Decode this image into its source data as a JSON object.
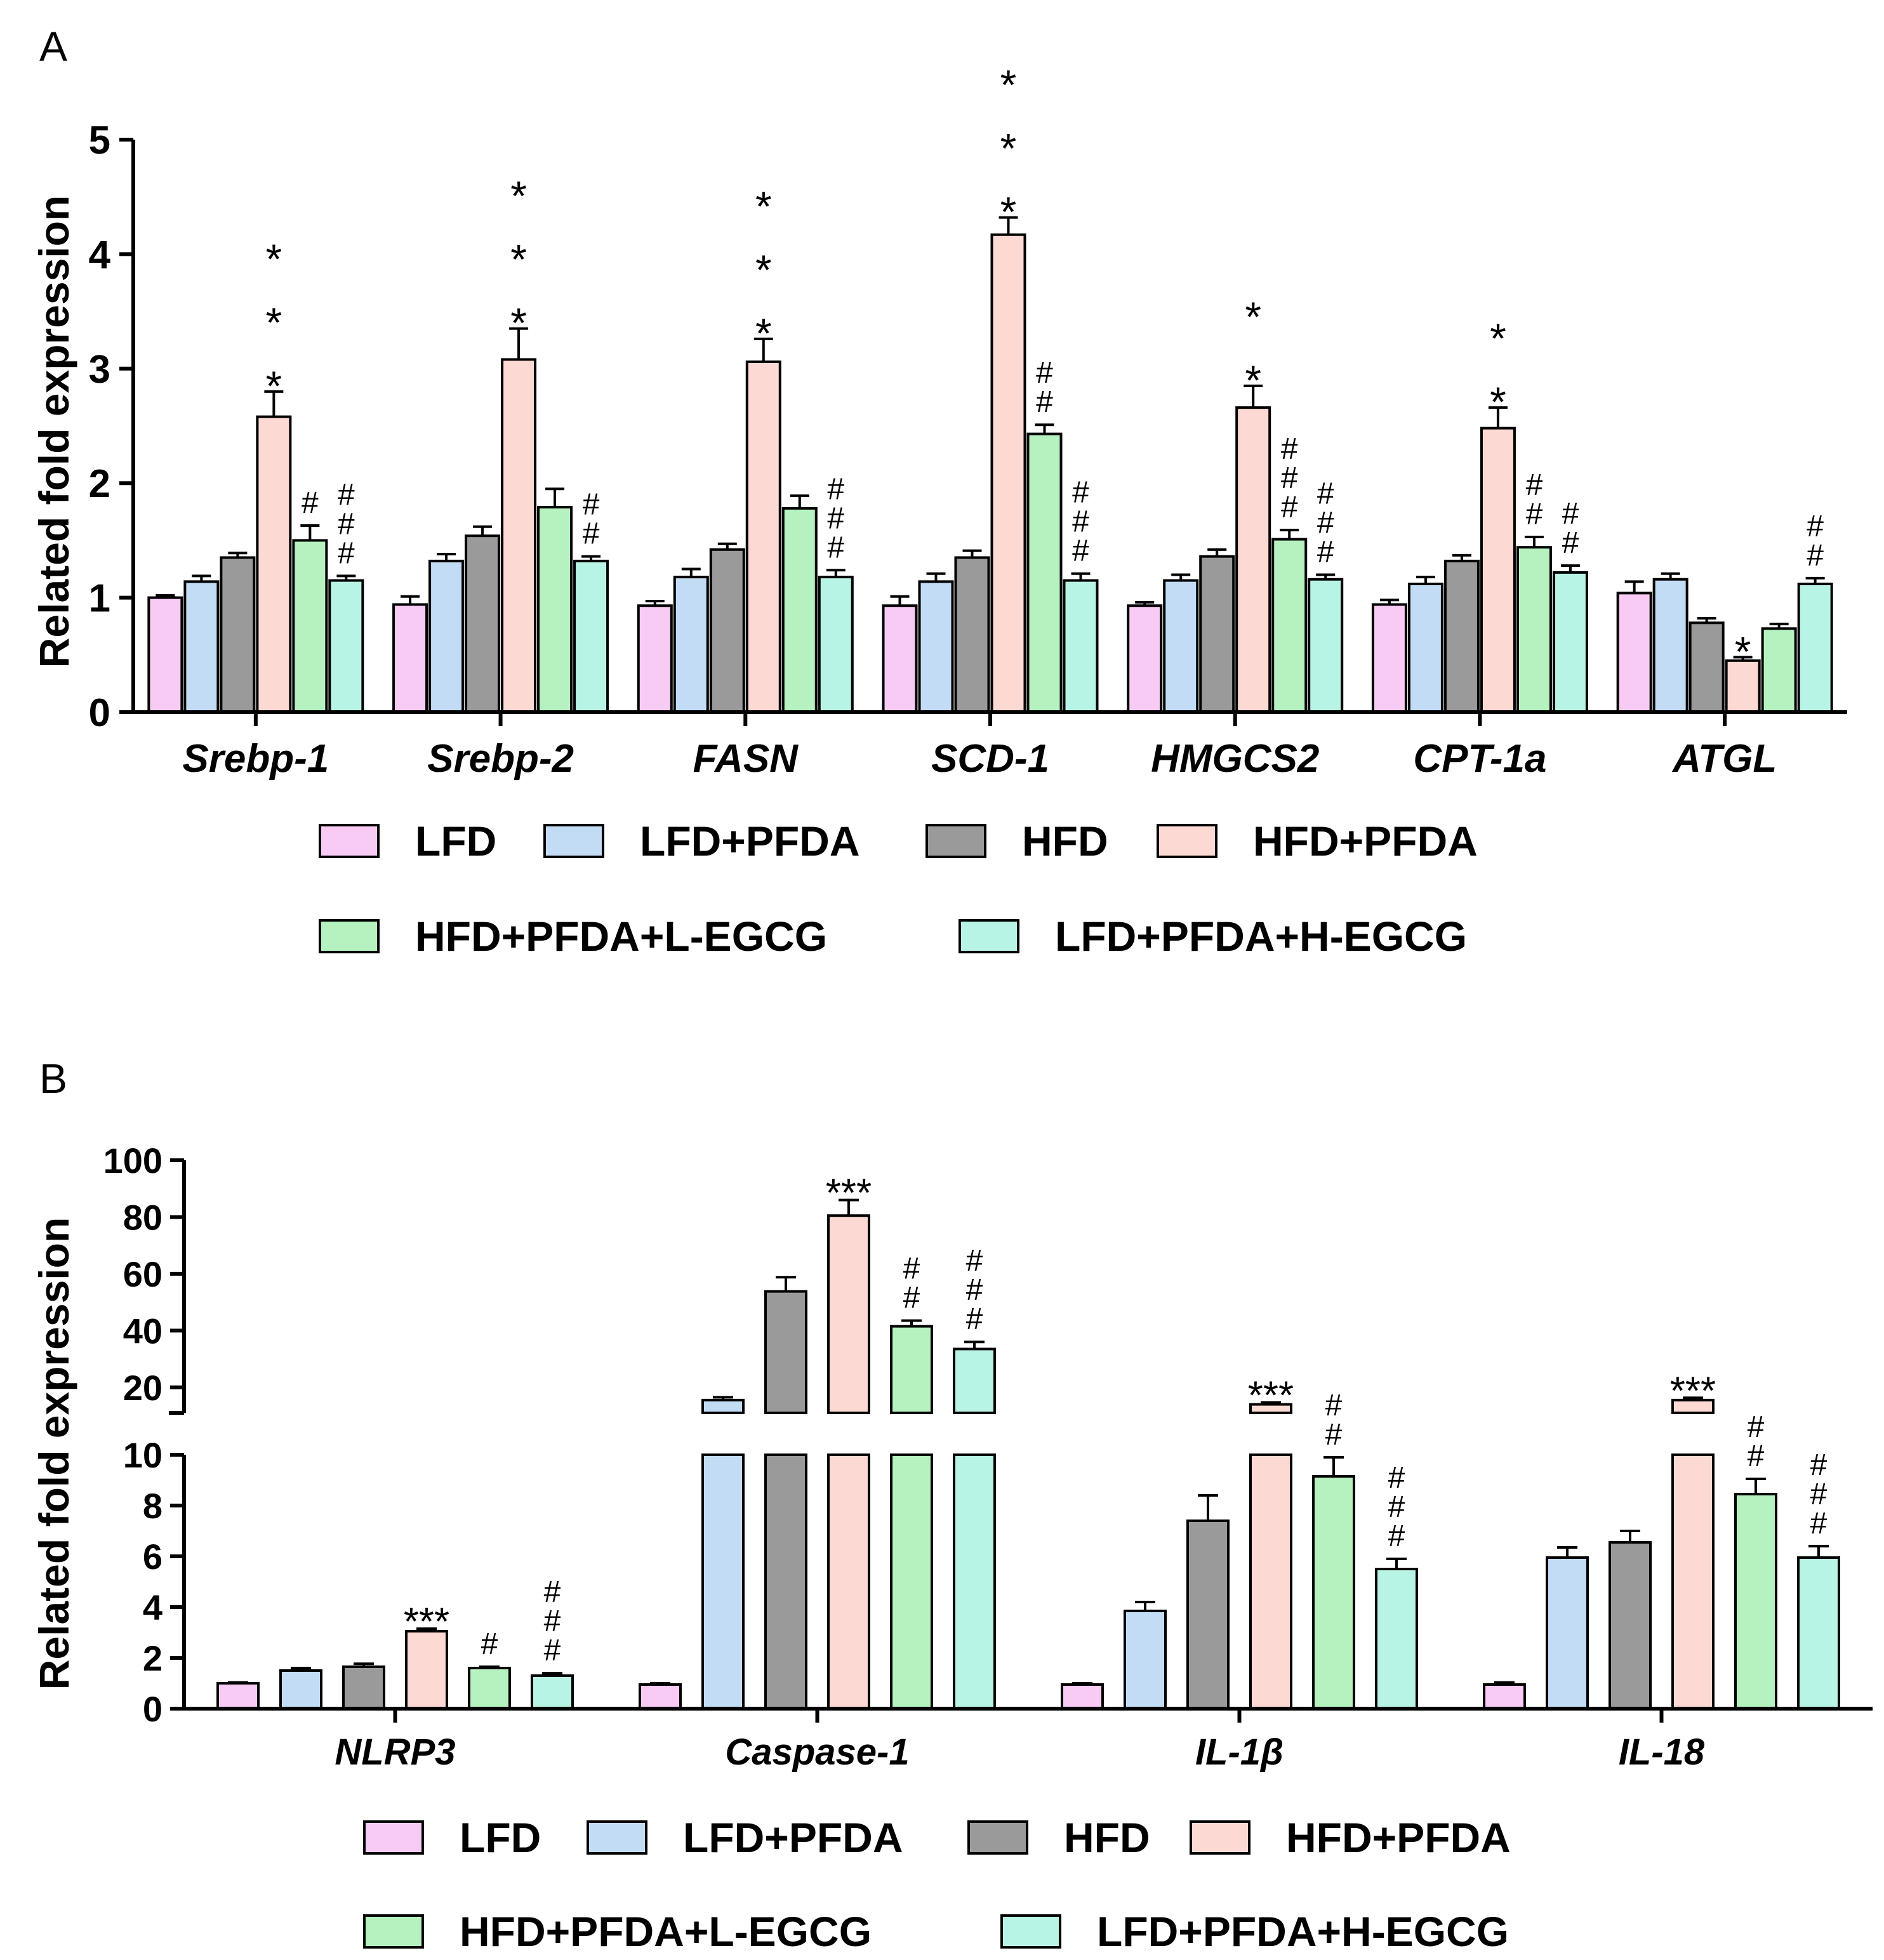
{
  "colors": {
    "LFD": "#f7cbf3",
    "LFD+PFDA": "#c3dcf5",
    "HFD": "#9a9a9a",
    "HFD+PFDA": "#fcd9d3",
    "HFD+PFDA+L-EGCG": "#b5f2c0",
    "LFD+PFDA+H-EGCG": "#b8f4e6",
    "axis": "#000000"
  },
  "chart_data": [
    {
      "panel": "A",
      "type": "bar",
      "ylabel": "Related fold expression",
      "ylim": [
        0,
        5
      ],
      "yticks": [
        0,
        1,
        2,
        3,
        4,
        5
      ],
      "categories": [
        "Srebp-1",
        "Srebp-2",
        "FASN",
        "SCD-1",
        "HMGCS2",
        "CPT-1a",
        "ATGL"
      ],
      "legend": {
        "row1": [
          "LFD",
          "LFD+PFDA",
          "HFD",
          "HFD+PFDA"
        ],
        "row2": [
          "HFD+PFDA+L-EGCG",
          "LFD+PFDA+H-EGCG"
        ]
      },
      "series": [
        {
          "name": "LFD",
          "values": [
            1.0,
            0.94,
            0.93,
            0.93,
            0.93,
            0.94,
            1.04
          ],
          "errors": [
            0.02,
            0.07,
            0.04,
            0.08,
            0.03,
            0.04,
            0.1
          ]
        },
        {
          "name": "LFD+PFDA",
          "values": [
            1.14,
            1.32,
            1.18,
            1.14,
            1.15,
            1.12,
            1.16
          ],
          "errors": [
            0.05,
            0.06,
            0.07,
            0.07,
            0.05,
            0.06,
            0.05
          ]
        },
        {
          "name": "HFD",
          "values": [
            1.35,
            1.54,
            1.42,
            1.35,
            1.36,
            1.32,
            0.78
          ],
          "errors": [
            0.04,
            0.08,
            0.05,
            0.06,
            0.06,
            0.05,
            0.04
          ]
        },
        {
          "name": "HFD+PFDA",
          "values": [
            2.58,
            3.08,
            3.06,
            4.17,
            2.66,
            2.48,
            0.45
          ],
          "errors": [
            0.22,
            0.27,
            0.2,
            0.15,
            0.19,
            0.18,
            0.03
          ]
        },
        {
          "name": "HFD+PFDA+L-EGCG",
          "values": [
            1.5,
            1.79,
            1.78,
            2.43,
            1.51,
            1.44,
            0.73
          ],
          "errors": [
            0.13,
            0.16,
            0.11,
            0.08,
            0.08,
            0.09,
            0.04
          ]
        },
        {
          "name": "LFD+PFDA+H-EGCG",
          "values": [
            1.15,
            1.32,
            1.18,
            1.15,
            1.16,
            1.22,
            1.12
          ],
          "errors": [
            0.04,
            0.04,
            0.06,
            0.06,
            0.04,
            0.06,
            0.05
          ]
        }
      ],
      "annotations": [
        {
          "category": "Srebp-1",
          "series": "HFD+PFDA",
          "marks": [
            "*",
            "*",
            "*"
          ]
        },
        {
          "category": "Srebp-1",
          "series": "HFD+PFDA+L-EGCG",
          "marks": [
            "#"
          ]
        },
        {
          "category": "Srebp-1",
          "series": "LFD+PFDA+H-EGCG",
          "marks": [
            "#",
            "#",
            "#"
          ]
        },
        {
          "category": "Srebp-2",
          "series": "HFD+PFDA",
          "marks": [
            "*",
            "*",
            "*"
          ]
        },
        {
          "category": "Srebp-2",
          "series": "LFD+PFDA+H-EGCG",
          "marks": [
            "#",
            "#"
          ]
        },
        {
          "category": "FASN",
          "series": "HFD+PFDA",
          "marks": [
            "*",
            "*",
            "*"
          ]
        },
        {
          "category": "FASN",
          "series": "LFD+PFDA+H-EGCG",
          "marks": [
            "#",
            "#",
            "#"
          ]
        },
        {
          "category": "SCD-1",
          "series": "HFD+PFDA",
          "marks": [
            "*",
            "*",
            "*"
          ]
        },
        {
          "category": "SCD-1",
          "series": "HFD+PFDA+L-EGCG",
          "marks": [
            "#",
            "#"
          ]
        },
        {
          "category": "SCD-1",
          "series": "LFD+PFDA+H-EGCG",
          "marks": [
            "#",
            "#",
            "#"
          ]
        },
        {
          "category": "HMGCS2",
          "series": "HFD+PFDA",
          "marks": [
            "*",
            "*"
          ]
        },
        {
          "category": "HMGCS2",
          "series": "HFD+PFDA+L-EGCG",
          "marks": [
            "#",
            "#",
            "#"
          ]
        },
        {
          "category": "HMGCS2",
          "series": "LFD+PFDA+H-EGCG",
          "marks": [
            "#",
            "#",
            "#"
          ]
        },
        {
          "category": "CPT-1a",
          "series": "HFD+PFDA",
          "marks": [
            "*",
            "*"
          ]
        },
        {
          "category": "CPT-1a",
          "series": "HFD+PFDA+L-EGCG",
          "marks": [
            "#",
            "#"
          ]
        },
        {
          "category": "CPT-1a",
          "series": "LFD+PFDA+H-EGCG",
          "marks": [
            "#",
            "#"
          ]
        },
        {
          "category": "ATGL",
          "series": "HFD+PFDA",
          "marks": [
            "*"
          ]
        },
        {
          "category": "ATGL",
          "series": "LFD+PFDA+H-EGCG",
          "marks": [
            "#",
            "#"
          ]
        }
      ]
    },
    {
      "panel": "B",
      "type": "bar",
      "ylabel": "Related fold expression",
      "ylim_lower": [
        0,
        10
      ],
      "yticks_lower": [
        0,
        2,
        4,
        6,
        8,
        10
      ],
      "ylim_upper": [
        11,
        100
      ],
      "yticks_upper": [
        20,
        40,
        60,
        80,
        100
      ],
      "categories": [
        "NLRP3",
        "Caspase-1",
        "IL-1β",
        "IL-18"
      ],
      "legend": {
        "row1": [
          "LFD",
          "LFD+PFDA",
          "HFD",
          "HFD+PFDA"
        ],
        "row2": [
          "HFD+PFDA+L-EGCG",
          "LFD+PFDA+H-EGCG"
        ]
      },
      "series": [
        {
          "name": "LFD",
          "values": [
            1.0,
            0.95,
            0.95,
            0.95
          ],
          "errors": [
            0.03,
            0.05,
            0.05,
            0.08
          ]
        },
        {
          "name": "LFD+PFDA",
          "values": [
            1.5,
            15.5,
            3.85,
            5.95
          ],
          "errors": [
            0.1,
            1.0,
            0.35,
            0.4
          ]
        },
        {
          "name": "HFD",
          "values": [
            1.65,
            53.8,
            7.4,
            6.55
          ],
          "errors": [
            0.12,
            5.0,
            1.0,
            0.45
          ]
        },
        {
          "name": "HFD+PFDA",
          "values": [
            3.05,
            80.5,
            14.0,
            15.5
          ],
          "errors": [
            0.1,
            5.5,
            0.7,
            0.8
          ]
        },
        {
          "name": "HFD+PFDA+L-EGCG",
          "values": [
            1.6,
            41.5,
            9.15,
            8.45
          ],
          "errors": [
            0.05,
            2.0,
            0.75,
            0.6
          ]
        },
        {
          "name": "LFD+PFDA+H-EGCG",
          "values": [
            1.3,
            33.5,
            5.5,
            5.95
          ],
          "errors": [
            0.1,
            2.5,
            0.4,
            0.45
          ]
        }
      ],
      "annotations": [
        {
          "category": "NLRP3",
          "series": "HFD+PFDA",
          "marks": [
            "***"
          ]
        },
        {
          "category": "NLRP3",
          "series": "HFD+PFDA+L-EGCG",
          "marks": [
            "#"
          ]
        },
        {
          "category": "NLRP3",
          "series": "LFD+PFDA+H-EGCG",
          "marks": [
            "#",
            "#",
            "#"
          ]
        },
        {
          "category": "Caspase-1",
          "series": "HFD+PFDA",
          "marks": [
            "***"
          ]
        },
        {
          "category": "Caspase-1",
          "series": "HFD+PFDA+L-EGCG",
          "marks": [
            "#",
            "#"
          ]
        },
        {
          "category": "Caspase-1",
          "series": "LFD+PFDA+H-EGCG",
          "marks": [
            "#",
            "#",
            "#"
          ]
        },
        {
          "category": "IL-1β",
          "series": "HFD+PFDA",
          "marks": [
            "***"
          ]
        },
        {
          "category": "IL-1β",
          "series": "HFD+PFDA+L-EGCG",
          "marks": [
            "#",
            "#"
          ]
        },
        {
          "category": "IL-1β",
          "series": "LFD+PFDA+H-EGCG",
          "marks": [
            "#",
            "#",
            "#"
          ]
        },
        {
          "category": "IL-18",
          "series": "HFD+PFDA",
          "marks": [
            "***"
          ]
        },
        {
          "category": "IL-18",
          "series": "HFD+PFDA+L-EGCG",
          "marks": [
            "#",
            "#"
          ]
        },
        {
          "category": "IL-18",
          "series": "LFD+PFDA+H-EGCG",
          "marks": [
            "#",
            "#",
            "#"
          ]
        }
      ]
    }
  ]
}
